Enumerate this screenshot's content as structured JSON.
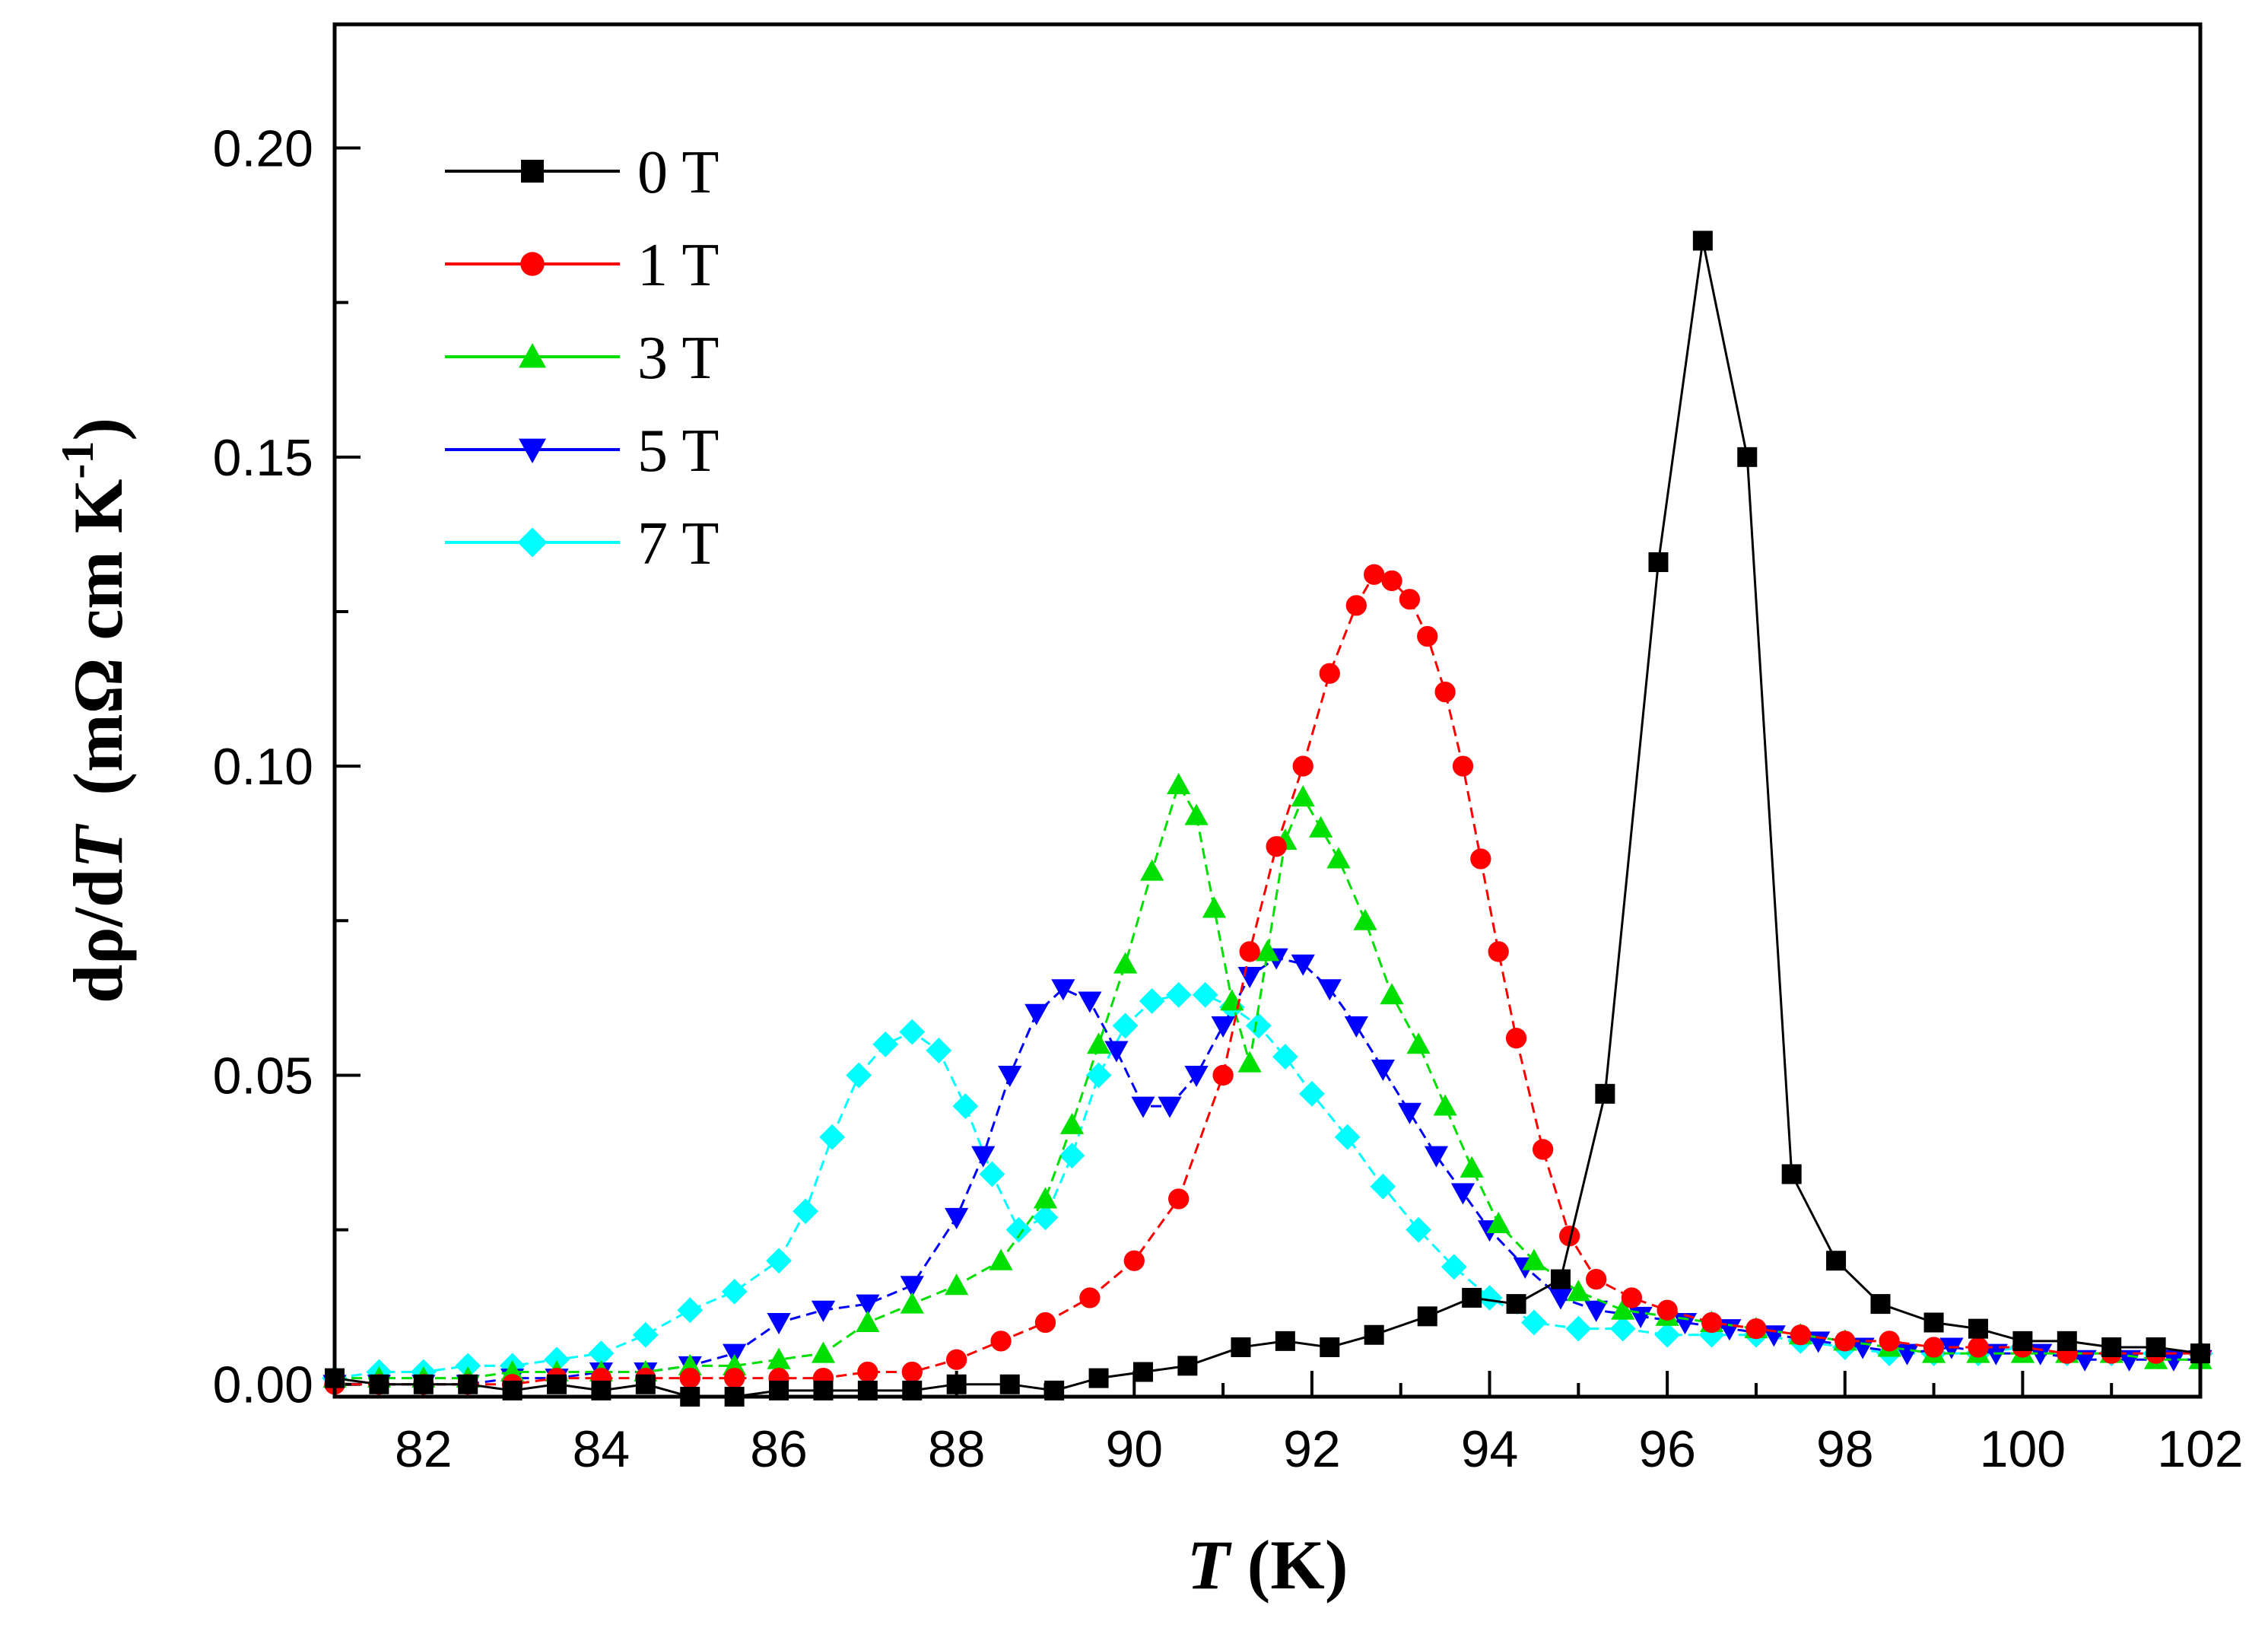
{
  "chart_data": {
    "type": "line",
    "title": "",
    "xlabel_italic": "T",
    "xlabel_unit": " (K)",
    "ylabel_prefix": "dρ/d",
    "ylabel_italic": "T",
    "ylabel_unit": "(mΩ cm K",
    "ylabel_sup": "-1",
    "ylabel_close": ")",
    "xlim": [
      81,
      102
    ],
    "ylim": [
      -0.002,
      0.22
    ],
    "xticks": [
      82,
      84,
      86,
      88,
      90,
      92,
      94,
      96,
      98,
      100,
      102
    ],
    "xtick_labels": [
      "82",
      "84",
      "86",
      "88",
      "90",
      "92",
      "94",
      "96",
      "98",
      "100",
      "102"
    ],
    "yticks": [
      0.0,
      0.05,
      0.1,
      0.15,
      0.2
    ],
    "ytick_labels": [
      "0.00",
      "0.05",
      "0.10",
      "0.15",
      "0.20"
    ],
    "legend_position": "top-left",
    "series": [
      {
        "name": "0 T",
        "color": "#000000",
        "marker": "square",
        "x": [
          81.0,
          81.5,
          82.0,
          82.5,
          83.0,
          83.5,
          84.0,
          84.5,
          85.0,
          85.5,
          86.0,
          86.5,
          87.0,
          87.5,
          88.0,
          88.6,
          89.1,
          89.6,
          90.1,
          90.6,
          91.2,
          91.7,
          92.2,
          92.7,
          93.3,
          93.8,
          94.3,
          94.8,
          95.3,
          95.9,
          96.4,
          96.9,
          97.4,
          97.9,
          98.4,
          99.0,
          99.5,
          100.0,
          100.5,
          101.0,
          101.5,
          102.0
        ],
        "y": [
          0.001,
          0.0,
          0.0,
          0.0,
          -0.001,
          0.0,
          -0.001,
          0.0,
          -0.002,
          -0.002,
          -0.001,
          -0.001,
          -0.001,
          -0.001,
          0.0,
          0.0,
          -0.001,
          0.001,
          0.002,
          0.003,
          0.006,
          0.007,
          0.006,
          0.008,
          0.011,
          0.014,
          0.013,
          0.017,
          0.047,
          0.133,
          0.185,
          0.15,
          0.034,
          0.02,
          0.013,
          0.01,
          0.009,
          0.007,
          0.007,
          0.006,
          0.006,
          0.005
        ]
      },
      {
        "name": "1 T",
        "color": "#ff0000",
        "marker": "circle",
        "x": [
          81.0,
          81.5,
          82.0,
          82.5,
          83.0,
          83.5,
          84.0,
          84.5,
          85.0,
          85.5,
          86.0,
          86.5,
          87.0,
          87.5,
          88.0,
          88.5,
          89.0,
          89.5,
          90.0,
          90.5,
          91.0,
          91.3,
          91.6,
          91.9,
          92.2,
          92.5,
          92.7,
          92.9,
          93.1,
          93.3,
          93.5,
          93.7,
          93.9,
          94.1,
          94.3,
          94.6,
          94.9,
          95.2,
          95.6,
          96.0,
          96.5,
          97.0,
          97.5,
          98.0,
          98.5,
          99.0,
          99.5,
          100.0,
          100.5,
          101.0,
          101.5,
          102.0
        ],
        "y": [
          0.0,
          0.0,
          0.0,
          0.0,
          0.0,
          0.001,
          0.001,
          0.001,
          0.001,
          0.001,
          0.001,
          0.001,
          0.002,
          0.002,
          0.004,
          0.007,
          0.01,
          0.014,
          0.02,
          0.03,
          0.05,
          0.07,
          0.087,
          0.1,
          0.115,
          0.126,
          0.131,
          0.13,
          0.127,
          0.121,
          0.112,
          0.1,
          0.085,
          0.07,
          0.056,
          0.038,
          0.024,
          0.017,
          0.014,
          0.012,
          0.01,
          0.009,
          0.008,
          0.007,
          0.007,
          0.006,
          0.006,
          0.006,
          0.005,
          0.005,
          0.005,
          0.005
        ]
      },
      {
        "name": "3 T",
        "color": "#00e000",
        "marker": "triangle-up",
        "x": [
          81.0,
          81.5,
          82.0,
          82.5,
          83.0,
          83.5,
          84.0,
          84.5,
          85.0,
          85.5,
          86.0,
          86.5,
          87.0,
          87.5,
          88.0,
          88.5,
          89.0,
          89.3,
          89.6,
          89.9,
          90.2,
          90.5,
          90.7,
          90.9,
          91.1,
          91.3,
          91.5,
          91.7,
          91.9,
          92.1,
          92.3,
          92.6,
          92.9,
          93.2,
          93.5,
          93.8,
          94.1,
          94.5,
          95.0,
          95.5,
          96.0,
          96.5,
          97.0,
          97.5,
          98.0,
          98.5,
          99.0,
          99.5,
          100.0,
          100.5,
          101.0,
          101.5,
          102.0
        ],
        "y": [
          0.001,
          0.001,
          0.001,
          0.001,
          0.002,
          0.002,
          0.002,
          0.002,
          0.003,
          0.003,
          0.004,
          0.005,
          0.01,
          0.013,
          0.016,
          0.02,
          0.03,
          0.042,
          0.055,
          0.068,
          0.083,
          0.097,
          0.092,
          0.077,
          0.062,
          0.052,
          0.07,
          0.088,
          0.095,
          0.09,
          0.085,
          0.075,
          0.063,
          0.055,
          0.045,
          0.035,
          0.026,
          0.02,
          0.015,
          0.012,
          0.011,
          0.01,
          0.009,
          0.008,
          0.007,
          0.006,
          0.005,
          0.005,
          0.005,
          0.005,
          0.005,
          0.004,
          0.004
        ]
      },
      {
        "name": "5 T",
        "color": "#0000ff",
        "marker": "triangle-down",
        "x": [
          81.0,
          81.5,
          82.0,
          82.5,
          83.0,
          83.5,
          84.0,
          84.5,
          85.0,
          85.5,
          86.0,
          86.5,
          87.0,
          87.5,
          88.0,
          88.3,
          88.6,
          88.9,
          89.2,
          89.5,
          89.8,
          90.1,
          90.4,
          90.7,
          91.0,
          91.3,
          91.6,
          91.9,
          92.2,
          92.5,
          92.8,
          93.1,
          93.4,
          93.7,
          94.0,
          94.4,
          94.8,
          95.2,
          95.7,
          96.2,
          96.7,
          97.2,
          97.7,
          98.2,
          98.7,
          99.2,
          99.7,
          100.2,
          100.7,
          101.2,
          101.7,
          102.0
        ],
        "y": [
          0.0,
          0.0,
          0.0,
          0.0,
          0.001,
          0.001,
          0.002,
          0.002,
          0.003,
          0.005,
          0.01,
          0.012,
          0.013,
          0.016,
          0.027,
          0.037,
          0.05,
          0.06,
          0.064,
          0.062,
          0.054,
          0.045,
          0.045,
          0.05,
          0.058,
          0.066,
          0.069,
          0.068,
          0.064,
          0.058,
          0.051,
          0.044,
          0.037,
          0.031,
          0.025,
          0.019,
          0.014,
          0.012,
          0.011,
          0.01,
          0.009,
          0.008,
          0.007,
          0.006,
          0.005,
          0.006,
          0.005,
          0.005,
          0.004,
          0.004,
          0.004,
          0.004
        ]
      },
      {
        "name": "7 T",
        "color": "#00ffff",
        "marker": "diamond",
        "x": [
          81.0,
          81.5,
          82.0,
          82.5,
          83.0,
          83.5,
          84.0,
          84.5,
          85.0,
          85.5,
          86.0,
          86.3,
          86.6,
          86.9,
          87.2,
          87.5,
          87.8,
          88.1,
          88.4,
          88.7,
          89.0,
          89.3,
          89.6,
          89.9,
          90.2,
          90.5,
          90.8,
          91.1,
          91.4,
          91.7,
          92.0,
          92.4,
          92.8,
          93.2,
          93.6,
          94.0,
          94.5,
          95.0,
          95.5,
          96.0,
          96.5,
          97.0,
          97.5,
          98.0,
          98.5,
          99.0,
          99.5,
          100.0,
          100.5,
          101.0,
          101.5,
          102.0
        ],
        "y": [
          0.001,
          0.002,
          0.002,
          0.003,
          0.003,
          0.004,
          0.005,
          0.008,
          0.012,
          0.015,
          0.02,
          0.028,
          0.04,
          0.05,
          0.055,
          0.057,
          0.054,
          0.045,
          0.034,
          0.025,
          0.027,
          0.037,
          0.05,
          0.058,
          0.062,
          0.063,
          0.063,
          0.061,
          0.058,
          0.053,
          0.047,
          0.04,
          0.032,
          0.025,
          0.019,
          0.014,
          0.01,
          0.009,
          0.009,
          0.008,
          0.008,
          0.008,
          0.007,
          0.006,
          0.005,
          0.005,
          0.005,
          0.006,
          0.005,
          0.005,
          0.005,
          0.005
        ]
      }
    ]
  }
}
